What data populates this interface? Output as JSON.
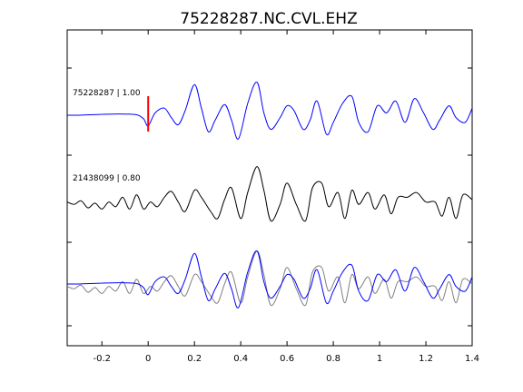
{
  "chart_data": {
    "type": "line",
    "title": "75228287.NC.CVL.EHZ",
    "xlim": [
      -0.35,
      1.4
    ],
    "x_ticks": [
      "-0.2",
      "0",
      "0.2",
      "0.4",
      "0.6",
      "0.8",
      "1",
      "1.2",
      "1.4"
    ],
    "x_tick_values": [
      -0.2,
      0,
      0.2,
      0.4,
      0.6,
      0.8,
      1.0,
      1.2,
      1.4
    ],
    "grid": false,
    "pick_marker": {
      "x": 0,
      "color": "#ff0000"
    },
    "traces": [
      {
        "label": "75228287 | 1.00",
        "color": "#0000ff",
        "x": [
          -0.35,
          -0.3,
          -0.25,
          -0.2,
          -0.15,
          -0.1,
          -0.05,
          -0.02,
          0.0,
          0.03,
          0.07,
          0.1,
          0.13,
          0.16,
          0.2,
          0.23,
          0.26,
          0.29,
          0.33,
          0.36,
          0.39,
          0.43,
          0.47,
          0.5,
          0.53,
          0.57,
          0.6,
          0.63,
          0.67,
          0.7,
          0.73,
          0.77,
          0.8,
          0.84,
          0.88,
          0.91,
          0.95,
          0.99,
          1.03,
          1.07,
          1.11,
          1.15,
          1.19,
          1.23,
          1.26,
          1.3,
          1.33,
          1.37,
          1.4
        ],
        "y": [
          0,
          0,
          0.02,
          0.04,
          0.05,
          0.05,
          0.02,
          -0.15,
          -0.45,
          0.1,
          0.3,
          -0.1,
          -0.4,
          0.2,
          1.3,
          0.3,
          -0.7,
          -0.2,
          0.45,
          -0.2,
          -1.0,
          0.5,
          1.4,
          0.1,
          -0.6,
          -0.1,
          0.4,
          0.2,
          -0.6,
          -0.2,
          0.6,
          -0.8,
          -0.3,
          0.5,
          0.8,
          -0.3,
          -0.7,
          0.4,
          0.1,
          0.6,
          -0.3,
          0.7,
          0.1,
          -0.6,
          -0.2,
          0.4,
          -0.1,
          -0.3,
          0.3
        ]
      },
      {
        "label": "21438099 | 0.80",
        "color": "#000000",
        "x": [
          -0.35,
          -0.32,
          -0.29,
          -0.26,
          -0.23,
          -0.2,
          -0.17,
          -0.14,
          -0.11,
          -0.08,
          -0.05,
          -0.02,
          0.01,
          0.04,
          0.07,
          0.1,
          0.13,
          0.16,
          0.2,
          0.23,
          0.27,
          0.3,
          0.33,
          0.36,
          0.4,
          0.43,
          0.47,
          0.5,
          0.53,
          0.57,
          0.6,
          0.64,
          0.68,
          0.71,
          0.75,
          0.78,
          0.82,
          0.85,
          0.88,
          0.91,
          0.95,
          0.98,
          1.02,
          1.05,
          1.08,
          1.12,
          1.16,
          1.2,
          1.24,
          1.27,
          1.3,
          1.33,
          1.36,
          1.4
        ],
        "y": [
          -0.1,
          -0.2,
          -0.05,
          -0.35,
          -0.15,
          -0.4,
          -0.1,
          -0.3,
          0.1,
          -0.4,
          0.2,
          -0.4,
          -0.1,
          -0.3,
          0.1,
          0.35,
          -0.1,
          -0.5,
          0.4,
          0.1,
          -0.5,
          -0.8,
          0.0,
          0.5,
          -0.8,
          0.3,
          1.4,
          0.4,
          -0.9,
          -0.2,
          0.7,
          -0.2,
          -0.9,
          0.5,
          0.7,
          -0.3,
          0.3,
          -0.8,
          0.4,
          -0.2,
          0.3,
          -0.4,
          0.2,
          -0.6,
          0.1,
          0.1,
          0.3,
          -0.1,
          -0.1,
          -0.7,
          0.1,
          -0.8,
          0.2,
          0.0
        ]
      },
      {
        "label": "",
        "color": "#808080",
        "x": [
          -0.35,
          -0.32,
          -0.29,
          -0.26,
          -0.23,
          -0.2,
          -0.17,
          -0.14,
          -0.11,
          -0.08,
          -0.05,
          -0.02,
          0.01,
          0.04,
          0.07,
          0.1,
          0.13,
          0.16,
          0.2,
          0.23,
          0.27,
          0.3,
          0.33,
          0.36,
          0.4,
          0.43,
          0.47,
          0.5,
          0.53,
          0.57,
          0.6,
          0.64,
          0.68,
          0.71,
          0.75,
          0.78,
          0.82,
          0.85,
          0.88,
          0.91,
          0.95,
          0.98,
          1.02,
          1.05,
          1.08,
          1.12,
          1.16,
          1.2,
          1.24,
          1.27,
          1.3,
          1.33,
          1.36,
          1.4
        ],
        "y": [
          -0.1,
          -0.2,
          -0.05,
          -0.35,
          -0.15,
          -0.4,
          -0.1,
          -0.3,
          0.1,
          -0.4,
          0.2,
          -0.4,
          -0.1,
          -0.3,
          0.1,
          0.35,
          -0.1,
          -0.5,
          0.4,
          0.1,
          -0.5,
          -0.8,
          0.0,
          0.5,
          -0.8,
          0.3,
          1.4,
          0.4,
          -0.9,
          -0.2,
          0.7,
          -0.2,
          -0.9,
          0.5,
          0.7,
          -0.3,
          0.3,
          -0.8,
          0.4,
          -0.2,
          0.3,
          -0.4,
          0.2,
          -0.6,
          0.1,
          0.1,
          0.3,
          -0.1,
          -0.1,
          -0.7,
          0.1,
          -0.8,
          0.2,
          0.0
        ]
      },
      {
        "label": "",
        "color": "#0000ff",
        "x": [
          -0.35,
          -0.3,
          -0.25,
          -0.2,
          -0.15,
          -0.1,
          -0.05,
          -0.02,
          0.0,
          0.03,
          0.07,
          0.1,
          0.13,
          0.16,
          0.2,
          0.23,
          0.26,
          0.29,
          0.33,
          0.36,
          0.39,
          0.43,
          0.47,
          0.5,
          0.53,
          0.57,
          0.6,
          0.63,
          0.67,
          0.7,
          0.73,
          0.77,
          0.8,
          0.84,
          0.88,
          0.91,
          0.95,
          0.99,
          1.03,
          1.07,
          1.11,
          1.15,
          1.19,
          1.23,
          1.26,
          1.3,
          1.33,
          1.37,
          1.4
        ],
        "y": [
          0,
          0,
          0.02,
          0.04,
          0.05,
          0.05,
          0.02,
          -0.15,
          -0.45,
          0.1,
          0.3,
          -0.1,
          -0.4,
          0.2,
          1.3,
          0.3,
          -0.7,
          -0.2,
          0.45,
          -0.2,
          -1.0,
          0.5,
          1.4,
          0.1,
          -0.6,
          -0.1,
          0.4,
          0.2,
          -0.6,
          -0.2,
          0.6,
          -0.8,
          -0.3,
          0.5,
          0.8,
          -0.3,
          -0.7,
          0.4,
          0.1,
          0.6,
          -0.3,
          0.7,
          0.1,
          -0.6,
          -0.2,
          0.4,
          -0.1,
          -0.3,
          0.3
        ]
      }
    ]
  }
}
